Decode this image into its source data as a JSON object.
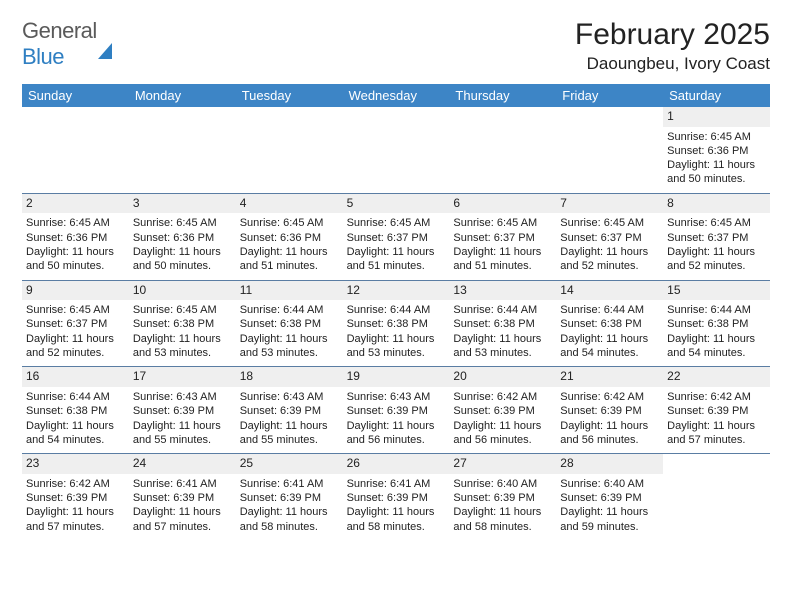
{
  "brand": {
    "word1": "General",
    "word2": "Blue"
  },
  "title": "February 2025",
  "location": "Daoungbeu, Ivory Coast",
  "colors": {
    "header_bg": "#3d85c6",
    "header_text": "#ffffff",
    "daynum_bg": "#efefef",
    "rule": "#5a7da3",
    "brand_gray": "#5a5a5a",
    "brand_blue": "#2f7fc2"
  },
  "day_headers": [
    "Sunday",
    "Monday",
    "Tuesday",
    "Wednesday",
    "Thursday",
    "Friday",
    "Saturday"
  ],
  "weeks": [
    [
      {
        "blank": true
      },
      {
        "blank": true
      },
      {
        "blank": true
      },
      {
        "blank": true
      },
      {
        "blank": true
      },
      {
        "blank": true
      },
      {
        "n": "1",
        "sunrise": "Sunrise: 6:45 AM",
        "sunset": "Sunset: 6:36 PM",
        "day1": "Daylight: 11 hours",
        "day2": "and 50 minutes."
      }
    ],
    [
      {
        "n": "2",
        "sunrise": "Sunrise: 6:45 AM",
        "sunset": "Sunset: 6:36 PM",
        "day1": "Daylight: 11 hours",
        "day2": "and 50 minutes."
      },
      {
        "n": "3",
        "sunrise": "Sunrise: 6:45 AM",
        "sunset": "Sunset: 6:36 PM",
        "day1": "Daylight: 11 hours",
        "day2": "and 50 minutes."
      },
      {
        "n": "4",
        "sunrise": "Sunrise: 6:45 AM",
        "sunset": "Sunset: 6:36 PM",
        "day1": "Daylight: 11 hours",
        "day2": "and 51 minutes."
      },
      {
        "n": "5",
        "sunrise": "Sunrise: 6:45 AM",
        "sunset": "Sunset: 6:37 PM",
        "day1": "Daylight: 11 hours",
        "day2": "and 51 minutes."
      },
      {
        "n": "6",
        "sunrise": "Sunrise: 6:45 AM",
        "sunset": "Sunset: 6:37 PM",
        "day1": "Daylight: 11 hours",
        "day2": "and 51 minutes."
      },
      {
        "n": "7",
        "sunrise": "Sunrise: 6:45 AM",
        "sunset": "Sunset: 6:37 PM",
        "day1": "Daylight: 11 hours",
        "day2": "and 52 minutes."
      },
      {
        "n": "8",
        "sunrise": "Sunrise: 6:45 AM",
        "sunset": "Sunset: 6:37 PM",
        "day1": "Daylight: 11 hours",
        "day2": "and 52 minutes."
      }
    ],
    [
      {
        "n": "9",
        "sunrise": "Sunrise: 6:45 AM",
        "sunset": "Sunset: 6:37 PM",
        "day1": "Daylight: 11 hours",
        "day2": "and 52 minutes."
      },
      {
        "n": "10",
        "sunrise": "Sunrise: 6:45 AM",
        "sunset": "Sunset: 6:38 PM",
        "day1": "Daylight: 11 hours",
        "day2": "and 53 minutes."
      },
      {
        "n": "11",
        "sunrise": "Sunrise: 6:44 AM",
        "sunset": "Sunset: 6:38 PM",
        "day1": "Daylight: 11 hours",
        "day2": "and 53 minutes."
      },
      {
        "n": "12",
        "sunrise": "Sunrise: 6:44 AM",
        "sunset": "Sunset: 6:38 PM",
        "day1": "Daylight: 11 hours",
        "day2": "and 53 minutes."
      },
      {
        "n": "13",
        "sunrise": "Sunrise: 6:44 AM",
        "sunset": "Sunset: 6:38 PM",
        "day1": "Daylight: 11 hours",
        "day2": "and 53 minutes."
      },
      {
        "n": "14",
        "sunrise": "Sunrise: 6:44 AM",
        "sunset": "Sunset: 6:38 PM",
        "day1": "Daylight: 11 hours",
        "day2": "and 54 minutes."
      },
      {
        "n": "15",
        "sunrise": "Sunrise: 6:44 AM",
        "sunset": "Sunset: 6:38 PM",
        "day1": "Daylight: 11 hours",
        "day2": "and 54 minutes."
      }
    ],
    [
      {
        "n": "16",
        "sunrise": "Sunrise: 6:44 AM",
        "sunset": "Sunset: 6:38 PM",
        "day1": "Daylight: 11 hours",
        "day2": "and 54 minutes."
      },
      {
        "n": "17",
        "sunrise": "Sunrise: 6:43 AM",
        "sunset": "Sunset: 6:39 PM",
        "day1": "Daylight: 11 hours",
        "day2": "and 55 minutes."
      },
      {
        "n": "18",
        "sunrise": "Sunrise: 6:43 AM",
        "sunset": "Sunset: 6:39 PM",
        "day1": "Daylight: 11 hours",
        "day2": "and 55 minutes."
      },
      {
        "n": "19",
        "sunrise": "Sunrise: 6:43 AM",
        "sunset": "Sunset: 6:39 PM",
        "day1": "Daylight: 11 hours",
        "day2": "and 56 minutes."
      },
      {
        "n": "20",
        "sunrise": "Sunrise: 6:42 AM",
        "sunset": "Sunset: 6:39 PM",
        "day1": "Daylight: 11 hours",
        "day2": "and 56 minutes."
      },
      {
        "n": "21",
        "sunrise": "Sunrise: 6:42 AM",
        "sunset": "Sunset: 6:39 PM",
        "day1": "Daylight: 11 hours",
        "day2": "and 56 minutes."
      },
      {
        "n": "22",
        "sunrise": "Sunrise: 6:42 AM",
        "sunset": "Sunset: 6:39 PM",
        "day1": "Daylight: 11 hours",
        "day2": "and 57 minutes."
      }
    ],
    [
      {
        "n": "23",
        "sunrise": "Sunrise: 6:42 AM",
        "sunset": "Sunset: 6:39 PM",
        "day1": "Daylight: 11 hours",
        "day2": "and 57 minutes."
      },
      {
        "n": "24",
        "sunrise": "Sunrise: 6:41 AM",
        "sunset": "Sunset: 6:39 PM",
        "day1": "Daylight: 11 hours",
        "day2": "and 57 minutes."
      },
      {
        "n": "25",
        "sunrise": "Sunrise: 6:41 AM",
        "sunset": "Sunset: 6:39 PM",
        "day1": "Daylight: 11 hours",
        "day2": "and 58 minutes."
      },
      {
        "n": "26",
        "sunrise": "Sunrise: 6:41 AM",
        "sunset": "Sunset: 6:39 PM",
        "day1": "Daylight: 11 hours",
        "day2": "and 58 minutes."
      },
      {
        "n": "27",
        "sunrise": "Sunrise: 6:40 AM",
        "sunset": "Sunset: 6:39 PM",
        "day1": "Daylight: 11 hours",
        "day2": "and 58 minutes."
      },
      {
        "n": "28",
        "sunrise": "Sunrise: 6:40 AM",
        "sunset": "Sunset: 6:39 PM",
        "day1": "Daylight: 11 hours",
        "day2": "and 59 minutes."
      },
      {
        "blank": true
      }
    ]
  ]
}
